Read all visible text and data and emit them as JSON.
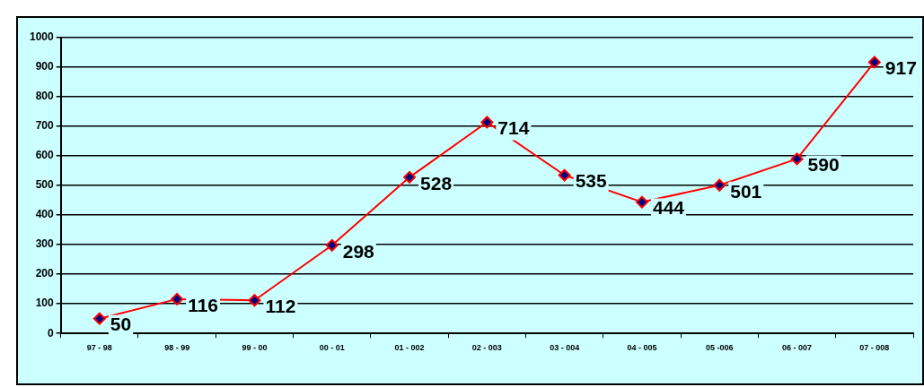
{
  "chart_data": {
    "type": "line",
    "categories": [
      "97 - 98",
      "98 - 99",
      "99 - 00",
      "00 - 01",
      "01 - 002",
      "02 - 003",
      "03 - 004",
      "04 - 005",
      "05 -006",
      "06 - 007",
      "07 - 008"
    ],
    "series": [
      {
        "color": "#ff0000",
        "values": [
          50,
          116,
          112,
          298,
          528,
          714,
          535,
          444,
          501,
          590,
          917
        ]
      }
    ],
    "ylim": [
      0,
      1000
    ],
    "yticks": [
      0,
      100,
      200,
      300,
      400,
      500,
      600,
      700,
      800,
      900,
      1000
    ],
    "grid": "y",
    "legend": false,
    "marker": "diamond",
    "line_style": "solid",
    "data_labels": true
  }
}
